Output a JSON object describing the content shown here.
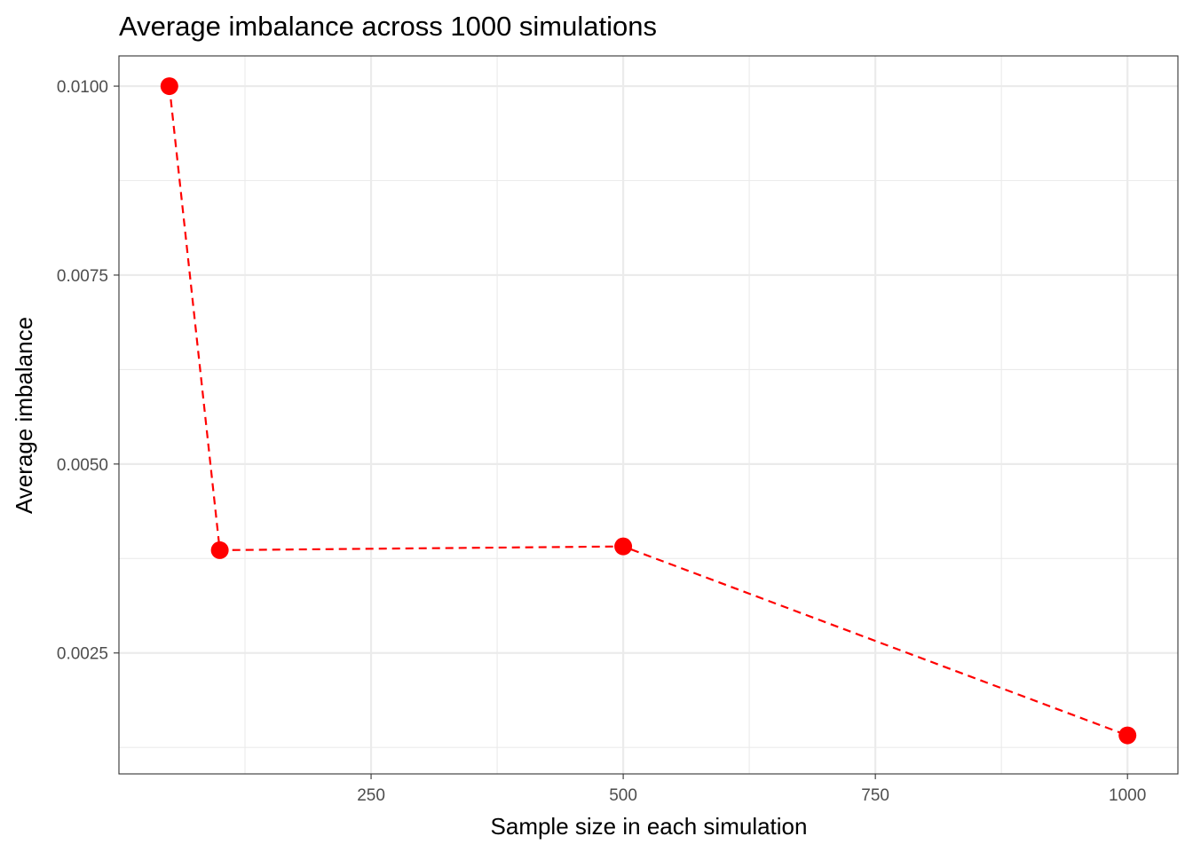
{
  "chart_data": {
    "type": "line",
    "title": "Average imbalance across 1000 simulations",
    "xlabel": "Sample size in each simulation",
    "ylabel": "Average imbalance",
    "x_ticks": [
      250,
      500,
      750,
      1000
    ],
    "x_tick_labels": [
      "250",
      "500",
      "750",
      "1000"
    ],
    "y_ticks": [
      0.0025,
      0.005,
      0.0075,
      0.01
    ],
    "y_tick_labels": [
      "0.0025",
      "0.0050",
      "0.0075",
      "0.0100"
    ],
    "xlim": [
      0,
      1050
    ],
    "ylim": [
      0.0009,
      0.0104
    ],
    "grid": true,
    "series": [
      {
        "x": [
          50,
          100,
          500,
          1000
        ],
        "values": [
          0.01,
          0.00386,
          0.00391,
          0.00141
        ],
        "color": "#ff0000",
        "line_style": "dashed",
        "marker": "circle"
      }
    ]
  }
}
